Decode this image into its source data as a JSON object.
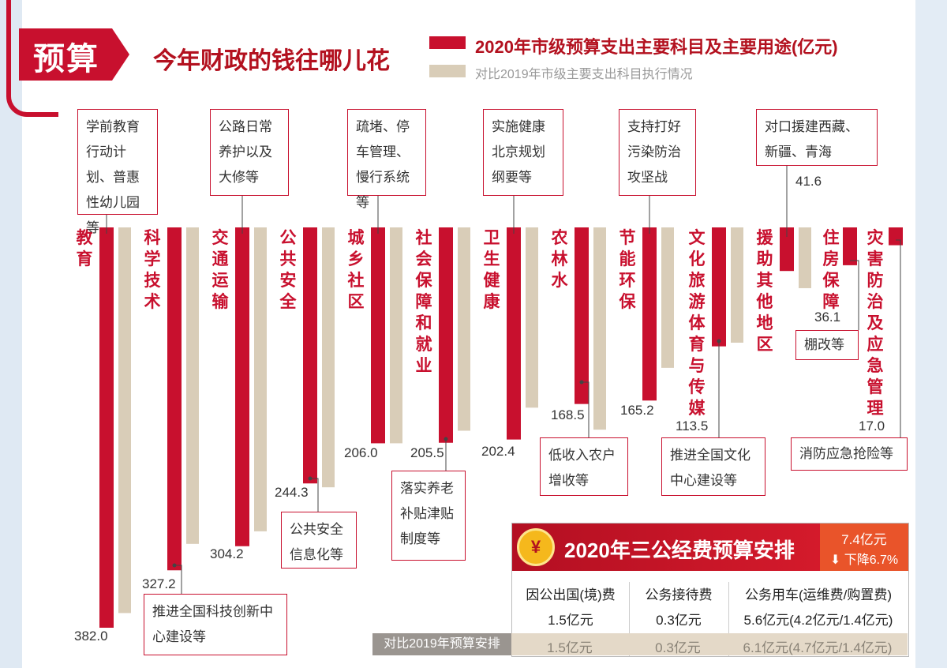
{
  "header": {
    "badge": "预算",
    "headline": "今年财政的钱往哪儿花"
  },
  "legend": {
    "current": "2020年市级预算支出主要科目及主要用途(亿元)",
    "previous": "对比2019年市级主要支出科目执行情况"
  },
  "colors": {
    "current": "#c8102e",
    "previous": "#d9cdb8",
    "accent": "#e9542a"
  },
  "chart_data": {
    "type": "bar",
    "title": "2020年市级预算支出主要科目及主要用途(亿元)",
    "series": [
      {
        "name": "2020年市级预算支出主要科目及主要用途(亿元)",
        "values": [
          382.0,
          327.2,
          304.2,
          244.3,
          206.0,
          205.5,
          202.4,
          168.5,
          165.2,
          113.5,
          41.6,
          36.1,
          17.0
        ]
      },
      {
        "name": "对比2019年市级主要支出科目执行情况",
        "values": [
          368,
          302,
          290,
          248,
          206,
          194,
          172,
          193,
          134,
          110,
          58,
          0,
          0
        ]
      }
    ],
    "categories": [
      "教育",
      "科学技术",
      "交通运输",
      "公共安全",
      "城乡社区",
      "社会保障和就业",
      "卫生健康",
      "农林水",
      "节能环保",
      "文化旅游体育与传媒",
      "援助其他地区",
      "住房保障",
      "灾害防治及应急管理"
    ],
    "value_labels": [
      "382.0",
      "327.2",
      "304.2",
      "244.3",
      "206.0",
      "205.5",
      "202.4",
      "168.5",
      "165.2",
      "113.5",
      "41.6",
      "36.1",
      "17.0"
    ],
    "notes": [
      "学前教育行动计划、普惠性幼儿园等",
      "推进全国科技创新中心建设等",
      "公路日常养护以及大修等",
      "公共安全信息化等",
      "疏堵、停车管理、慢行系统等",
      "落实养老补贴津贴制度等",
      "实施健康北京规划纲要等",
      "低收入农户增收等",
      "支持打好污染防治攻坚战",
      "推进全国文化中心建设等",
      "对口援建西藏、新疆、青海",
      "棚改等",
      "消防应急抢险等"
    ]
  },
  "three_public": {
    "title": "2020年三公经费预算安排",
    "coin": "¥",
    "total": "7.4亿元",
    "decline": "下降6.7%",
    "decline_icon": "down-arrow-icon",
    "columns": [
      {
        "header": "因公出国(境)费",
        "value": "1.5亿元",
        "prev": "1.5亿元"
      },
      {
        "header": "公务接待费",
        "value": "0.3亿元",
        "prev": "0.3亿元"
      },
      {
        "header": "公务用车(运维费/购置费)",
        "value": "5.6亿元(4.2亿元/1.4亿元)",
        "prev": "6.1亿元(4.7亿元/1.4亿元)"
      }
    ],
    "compare_label": "对比2019年预算安排"
  }
}
